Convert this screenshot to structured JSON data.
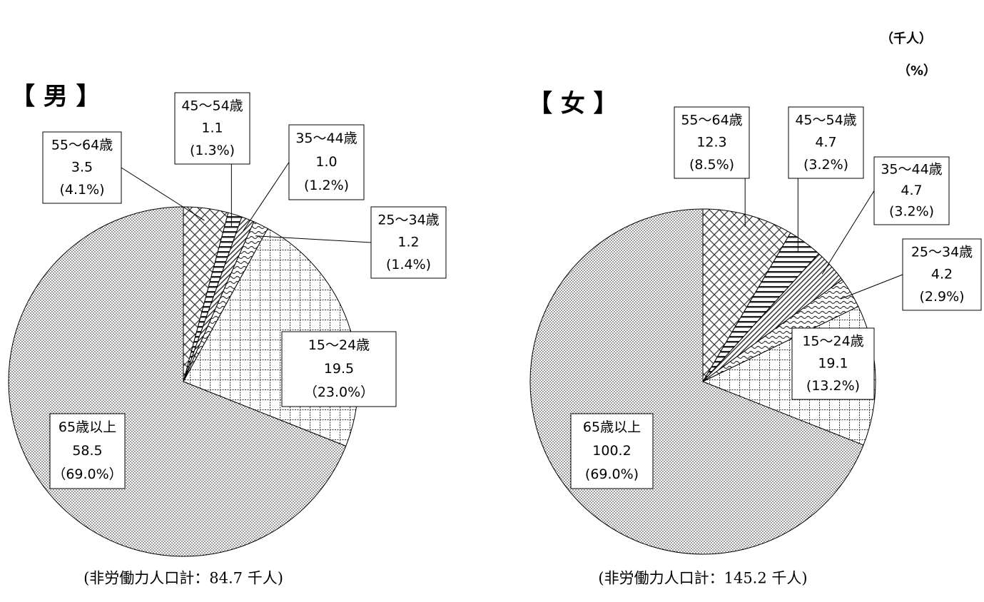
{
  "units": [
    "（千人）",
    "（%）"
  ],
  "chart_data": [
    {
      "type": "pie",
      "title": "【 男 】",
      "categories": [
        "55～64歳",
        "45～54歳",
        "35～44歳",
        "25～34歳",
        "15～24歳",
        "65歳以上"
      ],
      "values": [
        3.5,
        1.1,
        1.0,
        1.2,
        19.5,
        58.5
      ],
      "value_labels": [
        "3.5",
        "1.1",
        "1.0",
        "1.2",
        "19.5",
        "58.5"
      ],
      "percent_labels": [
        "(4.1%)",
        "(1.3%)",
        "(1.2%)",
        "(1.4%)",
        "（23.0%）",
        "（69.0%）"
      ],
      "patterns": [
        "crosshatch",
        "hlines",
        "diagonal",
        "wave",
        "grid",
        "dots"
      ],
      "total_label": "(非労働力人口計：84.7 千人)"
    },
    {
      "type": "pie",
      "title": "【 女 】",
      "categories": [
        "55～64歳",
        "45～54歳",
        "35～44歳",
        "25～34歳",
        "15～24歳",
        "65歳以上"
      ],
      "values": [
        12.3,
        4.7,
        4.7,
        4.2,
        19.1,
        100.2
      ],
      "value_labels": [
        "12.3",
        "4.7",
        "4.7",
        "4.2",
        "19.1",
        "100.2"
      ],
      "percent_labels": [
        "(8.5%)",
        "(3.2%)",
        "(3.2%)",
        "(2.9%)",
        "(13.2%)",
        "(69.0%)"
      ],
      "patterns": [
        "crosshatch",
        "hlines",
        "diagonal",
        "wave",
        "grid",
        "dots"
      ],
      "total_label": "(非労働力人口計：145.2 千人)"
    }
  ]
}
